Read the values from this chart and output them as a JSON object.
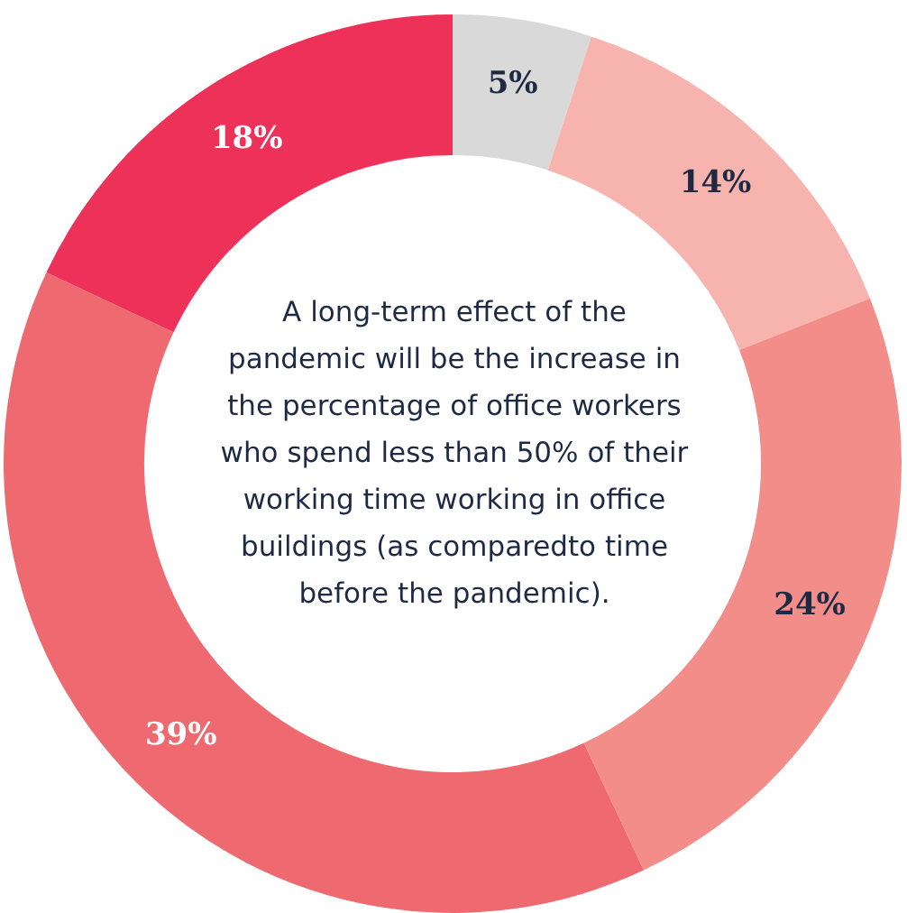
{
  "chart_data": {
    "type": "donut",
    "title": "A long-term effect of the pandemic will be the increase in the percentage of office workers who spend less than 50% of their working time working in office buildings (as comparedto time before the pandemic).",
    "categories": [
      null,
      null,
      null,
      null,
      null
    ],
    "values": [
      5,
      14,
      24,
      39,
      18
    ],
    "colors": [
      "#d9d9d9",
      "#f7b3ae",
      "#f28d8a",
      "#ee6a70",
      "#ee3158"
    ],
    "value_labels": [
      "5%",
      "14%",
      "24%",
      "39%",
      "18%"
    ]
  }
}
